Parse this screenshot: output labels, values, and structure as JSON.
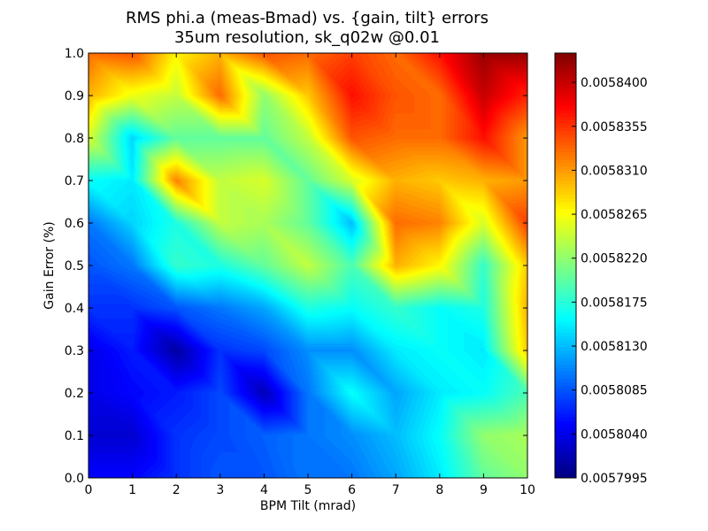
{
  "chart_data": {
    "type": "heatmap",
    "subtype": "filled-contour",
    "title": "RMS phi.a (meas-Bmad) vs. {gain, tilt} errors",
    "subtitle": "35um resolution, sk_q02w @0.01",
    "xlabel": "BPM Tilt (mrad)",
    "ylabel": "Gain Error (%)",
    "xlim": [
      0,
      10
    ],
    "ylim": [
      0.0,
      1.0
    ],
    "x": [
      0,
      1,
      2,
      3,
      4,
      5,
      6,
      7,
      8,
      9,
      10
    ],
    "y": [
      0.0,
      0.1,
      0.2,
      0.3,
      0.4,
      0.5,
      0.6,
      0.7,
      0.8,
      0.9,
      1.0
    ],
    "z": [
      [
        0.005805,
        0.005805,
        0.005807,
        0.0058085,
        0.0058085,
        0.00581,
        0.00581,
        0.005812,
        0.005815,
        0.00582,
        0.005822
      ],
      [
        0.005803,
        0.005803,
        0.005807,
        0.005808,
        0.005809,
        0.00581,
        0.005811,
        0.005813,
        0.005816,
        0.005822,
        0.005823
      ],
      [
        0.005804,
        0.005805,
        0.005806,
        0.005808,
        0.005802,
        0.00581,
        0.005816,
        0.005812,
        0.005815,
        0.005816,
        0.005819
      ],
      [
        0.005804,
        0.005806,
        0.005801,
        0.005807,
        0.005808,
        0.005811,
        0.005811,
        0.005815,
        0.005816,
        0.005815,
        0.005829
      ],
      [
        0.005807,
        0.005807,
        0.0058085,
        0.00581,
        0.005812,
        0.005817,
        0.005816,
        0.005818,
        0.005816,
        0.005817,
        0.00583
      ],
      [
        0.0058085,
        0.00581,
        0.005818,
        0.005817,
        0.00582,
        0.005824,
        0.005819,
        0.00583,
        0.005827,
        0.005818,
        0.005829
      ],
      [
        0.00581,
        0.005814,
        0.005817,
        0.005824,
        0.005823,
        0.00582,
        0.005813,
        0.005833,
        0.005832,
        0.005825,
        0.005835
      ],
      [
        0.005816,
        0.005815,
        0.005832,
        0.005824,
        0.005825,
        0.00582,
        0.005825,
        0.00583,
        0.005829,
        0.00583,
        0.005831
      ],
      [
        0.005825,
        0.005814,
        0.00582,
        0.00582,
        0.00582,
        0.005824,
        0.005834,
        0.005833,
        0.005833,
        0.005837,
        0.005831
      ],
      [
        0.00583,
        0.005826,
        0.005824,
        0.005833,
        0.005822,
        0.005829,
        0.005837,
        0.005834,
        0.005833,
        0.00584,
        0.005836
      ],
      [
        0.005833,
        0.005834,
        0.005827,
        0.00583,
        0.005834,
        0.005833,
        0.005835,
        0.005833,
        0.005837,
        0.005842,
        0.005842
      ]
    ],
    "zlim": [
      0.0057995,
      0.005843
    ],
    "colormap": "jet",
    "grid": false,
    "x_ticks": [
      "0",
      "1",
      "2",
      "3",
      "4",
      "5",
      "6",
      "7",
      "8",
      "9",
      "10"
    ],
    "y_ticks": [
      "0.0",
      "0.1",
      "0.2",
      "0.3",
      "0.4",
      "0.5",
      "0.6",
      "0.7",
      "0.8",
      "0.9",
      "1.0"
    ],
    "colorbar_ticks": [
      {
        "value": 0.0057995,
        "label": "0.0057995"
      },
      {
        "value": 0.005804,
        "label": "0.0058040"
      },
      {
        "value": 0.0058085,
        "label": "0.0058085"
      },
      {
        "value": 0.005813,
        "label": "0.0058130"
      },
      {
        "value": 0.0058175,
        "label": "0.0058175"
      },
      {
        "value": 0.005822,
        "label": "0.0058220"
      },
      {
        "value": 0.0058265,
        "label": "0.0058265"
      },
      {
        "value": 0.005831,
        "label": "0.0058310"
      },
      {
        "value": 0.0058355,
        "label": "0.0058355"
      },
      {
        "value": 0.00584,
        "label": "0.0058400"
      }
    ]
  }
}
